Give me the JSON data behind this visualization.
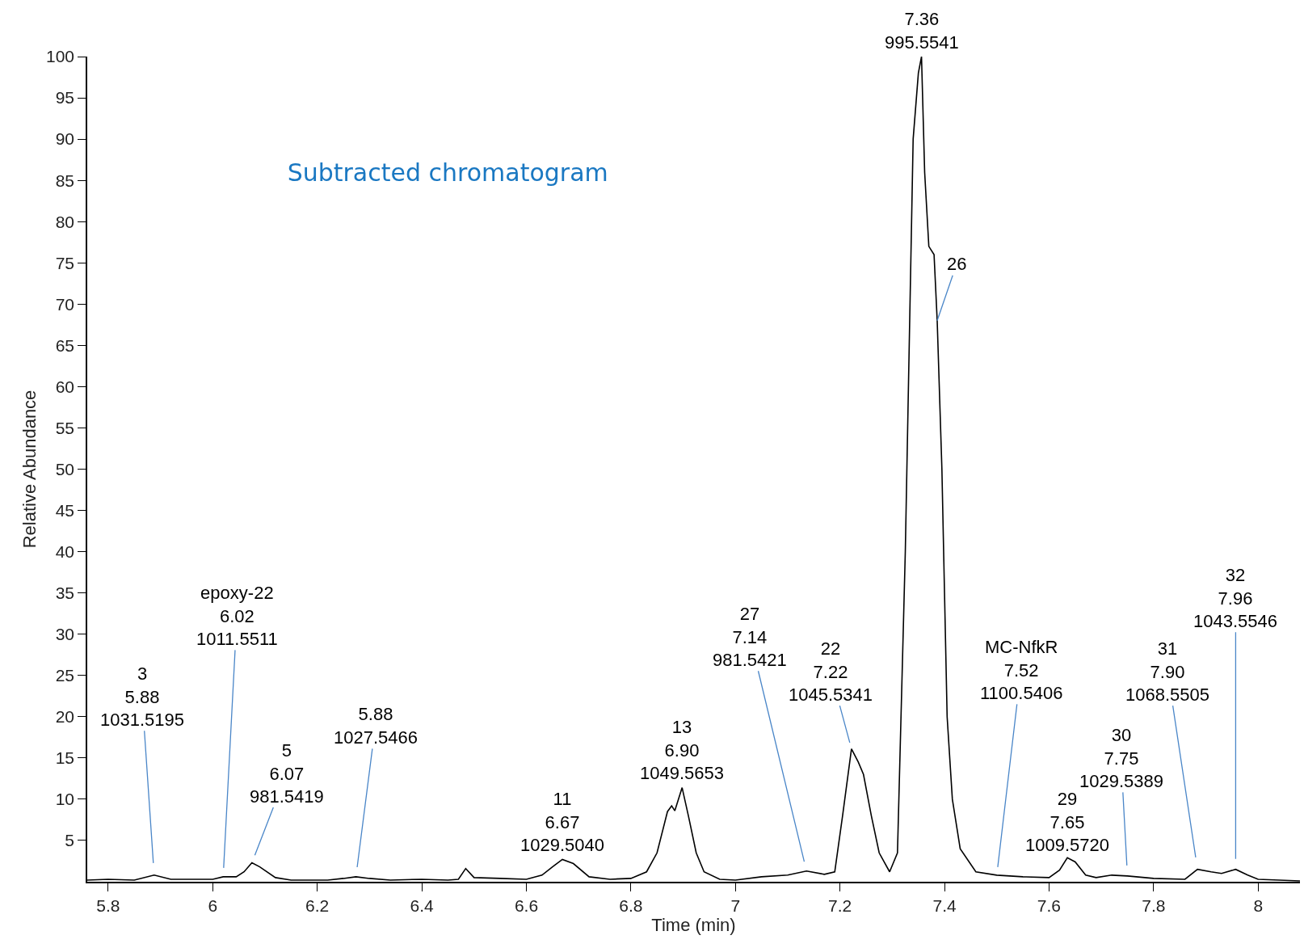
{
  "chart_data": {
    "type": "line",
    "title": "Subtracted chromatogram",
    "xlabel": "Time (min)",
    "ylabel": "Relative Abundance",
    "x": [
      5.76,
      5.8,
      5.85,
      5.888,
      5.92,
      5.97,
      6.0,
      6.02,
      6.045,
      6.06,
      6.075,
      6.09,
      6.12,
      6.15,
      6.22,
      6.25,
      6.274,
      6.3,
      6.34,
      6.4,
      6.45,
      6.47,
      6.484,
      6.5,
      6.55,
      6.6,
      6.63,
      6.65,
      6.669,
      6.69,
      6.72,
      6.76,
      6.8,
      6.83,
      6.85,
      6.87,
      6.878,
      6.884,
      6.89,
      6.898,
      6.91,
      6.925,
      6.94,
      6.97,
      7.0,
      7.05,
      7.1,
      7.136,
      7.17,
      7.19,
      7.205,
      7.222,
      7.235,
      7.245,
      7.26,
      7.275,
      7.295,
      7.31,
      7.325,
      7.34,
      7.35,
      7.356,
      7.362,
      7.37,
      7.38,
      7.386,
      7.395,
      7.4,
      7.405,
      7.415,
      7.43,
      7.46,
      7.5,
      7.55,
      7.6,
      7.62,
      7.635,
      7.65,
      7.67,
      7.69,
      7.72,
      7.75,
      7.8,
      7.86,
      7.884,
      7.91,
      7.93,
      7.957,
      7.98,
      8.0,
      8.08
    ],
    "values": [
      0.2,
      0.3,
      0.2,
      0.8,
      0.3,
      0.3,
      0.3,
      0.6,
      0.6,
      1.2,
      2.3,
      1.8,
      0.5,
      0.2,
      0.2,
      0.4,
      0.6,
      0.4,
      0.2,
      0.3,
      0.2,
      0.3,
      1.6,
      0.5,
      0.4,
      0.3,
      0.8,
      1.8,
      2.7,
      2.2,
      0.6,
      0.3,
      0.4,
      1.2,
      3.5,
      8.5,
      9.2,
      8.6,
      9.8,
      11.4,
      8.0,
      3.5,
      1.2,
      0.3,
      0.2,
      0.6,
      0.8,
      1.3,
      0.9,
      1.2,
      8,
      16.1,
      14.5,
      13,
      8,
      3.5,
      1.2,
      3.5,
      40,
      90,
      98,
      100,
      86,
      77,
      76,
      68,
      50,
      35,
      20,
      10,
      4,
      1.2,
      0.8,
      0.6,
      0.5,
      1.4,
      2.9,
      2.4,
      0.8,
      0.5,
      0.8,
      0.7,
      0.4,
      0.3,
      1.5,
      1.2,
      1.0,
      1.5,
      0.8,
      0.3,
      0.1
    ],
    "color": "#000000",
    "xlim": [
      5.76,
      8.08
    ],
    "xticks": [
      5.8,
      6.0,
      6.2,
      6.4,
      6.6,
      6.8,
      7.0,
      7.2,
      7.4,
      7.6,
      7.8,
      8.0
    ],
    "ylim": [
      0,
      100
    ],
    "yticks": [
      5,
      10,
      15,
      20,
      25,
      30,
      35,
      40,
      45,
      50,
      55,
      60,
      65,
      70,
      75,
      80,
      85,
      90,
      95,
      100
    ],
    "grid": false,
    "marker": "none",
    "line_style": "solid",
    "annotations": [
      {
        "text": "3\n5.88\n1031.5195",
        "x": 5.888,
        "y": 0.8
      },
      {
        "text": "epoxy-22\n6.02\n1011.5511",
        "x": 6.02,
        "y": 0.6
      },
      {
        "text": "5\n6.07\n981.5419",
        "x": 6.075,
        "y": 2.3
      },
      {
        "text": "5.88\n1027.5466",
        "x": 6.274,
        "y": 0.6
      },
      {
        "text": "11\n6.67\n1029.5040",
        "x": 6.669,
        "y": 2.7
      },
      {
        "text": "13\n6.90\n1049.5653",
        "x": 6.898,
        "y": 11.4
      },
      {
        "text": "27\n7.14\n981.5421",
        "x": 7.136,
        "y": 1.3
      },
      {
        "text": "22\n7.22\n1045.5341",
        "x": 7.222,
        "y": 16.1
      },
      {
        "text": "7.36\n995.5541",
        "x": 7.356,
        "y": 100
      },
      {
        "text": "26",
        "x": 7.386,
        "y": 68
      },
      {
        "text": "MC-NfkR\n7.52\n1100.5406",
        "x": 7.5,
        "y": 0.8
      },
      {
        "text": "29\n7.65\n1009.5720",
        "x": 7.635,
        "y": 2.9
      },
      {
        "text": "30\n7.75\n1029.5389",
        "x": 7.75,
        "y": 0.7
      },
      {
        "text": "31\n7.90\n1068.5505",
        "x": 7.884,
        "y": 1.5
      },
      {
        "text": "32\n7.96\n1043.5546",
        "x": 7.957,
        "y": 1.5
      }
    ]
  }
}
